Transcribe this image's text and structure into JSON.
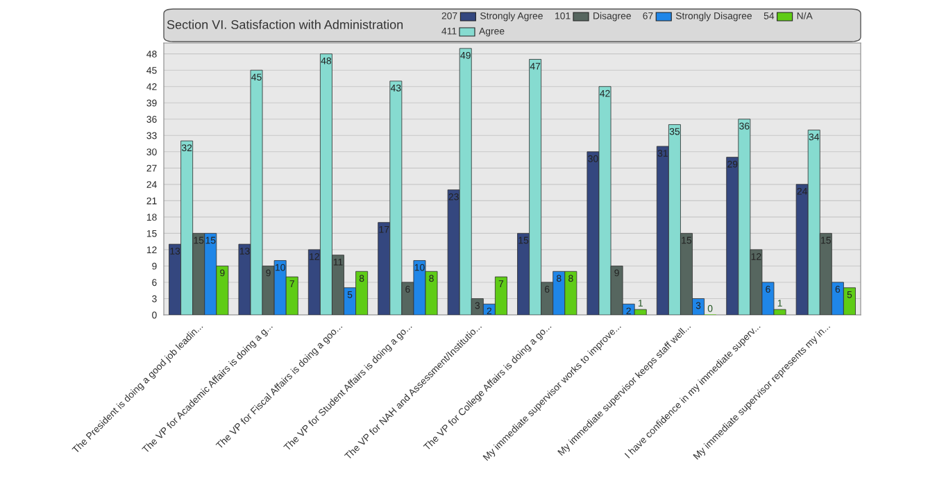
{
  "chart_data": {
    "type": "bar",
    "title": "Section VI. Satisfaction with Administration",
    "categories": [
      "The President is doing a good job leadin...",
      "The VP for Academic Affairs is doing a g...",
      "The VP for Fiscal Affairs is doing a goo...",
      "The VP for Student Affairs is doing a go...",
      "The VP for NAH and Assessment/Institutio...",
      "The VP for College Affairs is doing a go...",
      "My immediate supervisor works to improve...",
      "My immediate supervisor keeps staff well...",
      "I have confidence in my immediate superv...",
      "My immediate supervisor represents my in..."
    ],
    "series": [
      {
        "name": "Strongly Agree",
        "color": "#34477f",
        "values": [
          13,
          13,
          12,
          17,
          23,
          15,
          30,
          31,
          29,
          24
        ]
      },
      {
        "name": "Agree",
        "color": "#86dbd0",
        "values": [
          32,
          45,
          48,
          43,
          49,
          47,
          42,
          35,
          36,
          34
        ]
      },
      {
        "name": "Disagree",
        "color": "#56665f",
        "values": [
          15,
          9,
          11,
          6,
          3,
          6,
          9,
          15,
          12,
          15
        ]
      },
      {
        "name": "Strongly Disagree",
        "color": "#1f86e8",
        "values": [
          15,
          10,
          5,
          10,
          2,
          8,
          2,
          3,
          6,
          6
        ]
      },
      {
        "name": "N/A",
        "color": "#5fcc16",
        "values": [
          9,
          7,
          8,
          8,
          7,
          8,
          1,
          0,
          1,
          5
        ]
      }
    ],
    "annotations": [
      "207",
      "411",
      "101",
      "67",
      "54"
    ],
    "ylim": [
      0,
      50
    ],
    "yticks": [
      0,
      3,
      6,
      9,
      12,
      15,
      18,
      21,
      24,
      27,
      30,
      33,
      36,
      39,
      42,
      45,
      48
    ],
    "grid": "y",
    "legend": "top right",
    "data_labels": true
  }
}
